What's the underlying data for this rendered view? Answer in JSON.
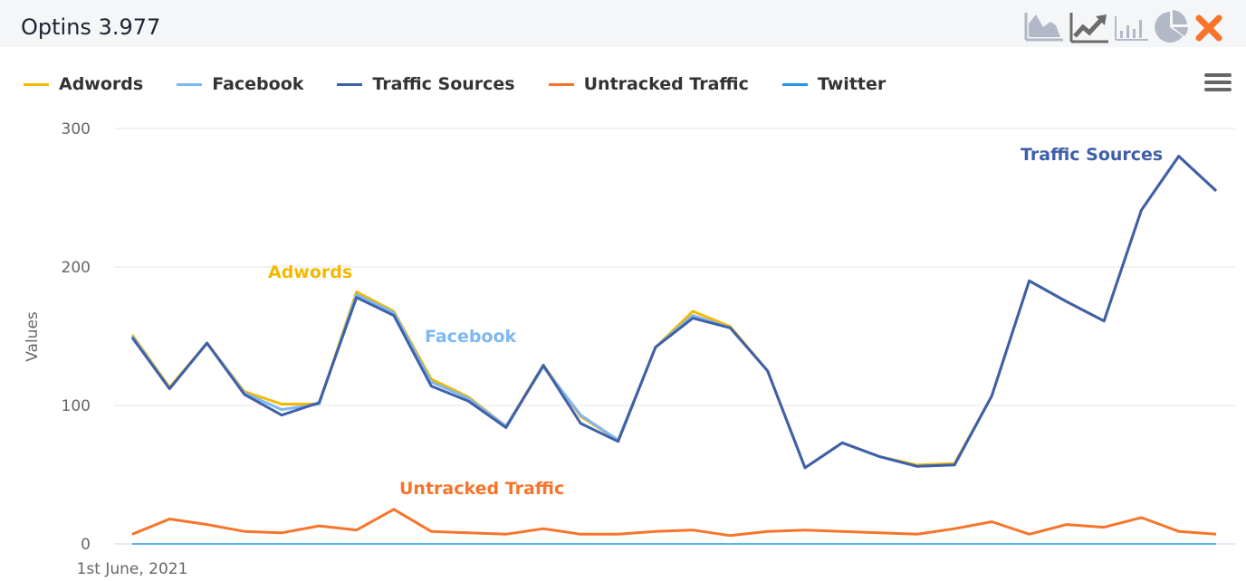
{
  "header": {
    "title": "Optins 3.977"
  },
  "toolbar": {
    "icons": [
      "area-chart-icon",
      "line-chart-icon",
      "bar-chart-icon",
      "pie-chart-icon",
      "close-icon"
    ]
  },
  "chart_data": {
    "type": "line",
    "title": "Optins 3.977",
    "ylabel": "Values",
    "xlabel": "",
    "x_first_label": "1st June, 2021",
    "ylim": [
      0,
      300
    ],
    "yticks": [
      0,
      100,
      200,
      300
    ],
    "x": [
      1,
      2,
      3,
      4,
      5,
      6,
      7,
      8,
      9,
      10,
      11,
      12,
      13,
      14,
      15,
      16,
      17,
      18,
      19,
      20,
      21,
      22,
      23,
      24,
      25,
      26,
      27,
      28,
      29,
      30
    ],
    "legend_position": "top-left",
    "grid": true,
    "series": [
      {
        "name": "Adwords",
        "color": "#f5b800",
        "values": [
          151,
          113,
          145,
          110,
          101,
          101,
          182,
          168,
          119,
          106,
          85,
          129,
          92,
          75,
          142,
          168,
          157,
          125,
          55,
          73,
          63,
          57,
          58,
          107,
          190,
          175,
          161,
          241,
          280,
          255
        ]
      },
      {
        "name": "Facebook",
        "color": "#7cb8f2",
        "values": [
          150,
          112,
          145,
          109,
          97,
          101,
          180,
          167,
          117,
          105,
          85,
          128,
          93,
          75,
          142,
          165,
          156,
          125,
          55,
          73,
          63,
          56,
          57,
          107,
          190,
          175,
          161,
          241,
          280,
          255
        ]
      },
      {
        "name": "Traffic Sources",
        "color": "#3f5fa8",
        "values": [
          149,
          112,
          145,
          108,
          93,
          102,
          178,
          165,
          114,
          103,
          84,
          129,
          87,
          74,
          142,
          163,
          156,
          125,
          55,
          73,
          63,
          56,
          57,
          107,
          190,
          175,
          161,
          241,
          280,
          255
        ]
      },
      {
        "name": "Untracked Traffic",
        "color": "#f7742a",
        "values": [
          7,
          18,
          14,
          9,
          8,
          13,
          10,
          25,
          9,
          8,
          7,
          11,
          7,
          7,
          9,
          10,
          6,
          9,
          10,
          9,
          8,
          7,
          11,
          16,
          7,
          14,
          12,
          19,
          9,
          7
        ]
      },
      {
        "name": "Twitter",
        "color": "#2196e8",
        "values": [
          0,
          0,
          0,
          0,
          0,
          0,
          0,
          0,
          0,
          0,
          0,
          0,
          0,
          0,
          0,
          0,
          0,
          0,
          0,
          0,
          0,
          0,
          0,
          0,
          0,
          0,
          0,
          0,
          0,
          0
        ]
      }
    ],
    "annotations": [
      "Adwords",
      "Facebook",
      "Traffic Sources",
      "Untracked Traffic"
    ]
  }
}
